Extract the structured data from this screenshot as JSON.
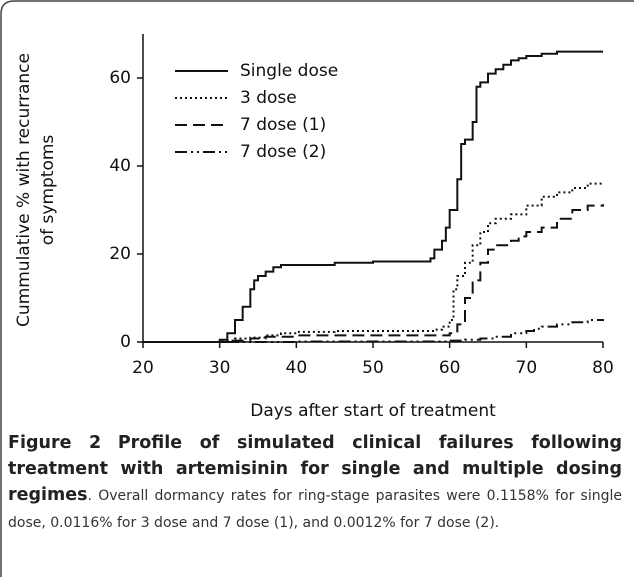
{
  "chart_data": {
    "type": "line",
    "step": true,
    "ylabel": [
      "Cummulative % with recurrance",
      "of symptoms"
    ],
    "xlabel": "Days after start of treatment",
    "xlim": [
      20,
      80
    ],
    "xticks": [
      20,
      30,
      40,
      50,
      60,
      70,
      80
    ],
    "ylim": [
      0,
      70
    ],
    "yticks": [
      0,
      20,
      40,
      60
    ],
    "legend": "upper left",
    "series": [
      {
        "name": "Single dose",
        "color": "#111111",
        "dash": "solid",
        "x": [
          20,
          29,
          30,
          31,
          32,
          33,
          34,
          34.5,
          35,
          36,
          37,
          38,
          40,
          45,
          50,
          57,
          57.5,
          58,
          59,
          59.5,
          60,
          61,
          61.5,
          62,
          63,
          63.5,
          64,
          65,
          66,
          67,
          68,
          69,
          70,
          72,
          74,
          76,
          80
        ],
        "values": [
          0,
          0,
          0.5,
          2,
          5,
          8,
          12,
          14,
          15,
          16,
          17,
          17.5,
          17.5,
          18,
          18.3,
          18.3,
          19,
          21,
          23,
          26,
          30,
          37,
          45,
          46,
          50,
          58,
          59,
          61,
          62,
          63,
          64,
          64.5,
          65,
          65.5,
          66,
          66,
          66
        ]
      },
      {
        "name": "3 dose",
        "color": "#111111",
        "dash": "dotted",
        "x": [
          20,
          30,
          32,
          34,
          36,
          38,
          40,
          45,
          55,
          58,
          59,
          60,
          60.5,
          61,
          62,
          63,
          64,
          65,
          66,
          68,
          70,
          72,
          74,
          76,
          78,
          80
        ],
        "values": [
          0,
          0.3,
          0.8,
          1,
          1.5,
          2,
          2.3,
          2.5,
          2.5,
          2.8,
          3.5,
          5,
          12,
          15,
          18,
          22,
          25,
          27,
          28,
          29,
          31,
          33,
          34,
          35,
          36,
          36.3
        ]
      },
      {
        "name": "7 dose (1)",
        "color": "#111111",
        "dash": "dashed",
        "x": [
          20,
          31,
          34,
          36,
          40,
          50,
          59,
          60,
          61,
          62,
          63,
          64,
          65,
          66,
          68,
          69,
          70,
          72,
          74,
          76,
          78,
          80
        ],
        "values": [
          0,
          0.3,
          0.8,
          1.2,
          1.5,
          1.5,
          1.5,
          2,
          4,
          10,
          14,
          18,
          21,
          22,
          23,
          24,
          25,
          26,
          28,
          30,
          31,
          31.3
        ]
      },
      {
        "name": "7 dose (2)",
        "color": "#111111",
        "dash": "dashdotdot",
        "x": [
          20,
          35,
          40,
          59,
          60,
          62,
          64,
          66,
          68,
          70,
          71,
          72,
          74,
          76,
          78,
          80
        ],
        "values": [
          0,
          0,
          0.1,
          0.1,
          0.3,
          0.5,
          0.8,
          1.2,
          2,
          2.5,
          3,
          3.5,
          4,
          4.5,
          5,
          5.2
        ]
      }
    ]
  },
  "caption": {
    "label": "Figure 2",
    "title": "Profile of simulated clinical failures following treatment with artemisinin for single and multiple dosing regimes",
    "body": ". Overall dormancy rates for ring-stage parasites were 0.1158% for single dose, 0.0116% for 3 dose and 7 dose (1), and 0.0012% for 7 dose (2)."
  }
}
